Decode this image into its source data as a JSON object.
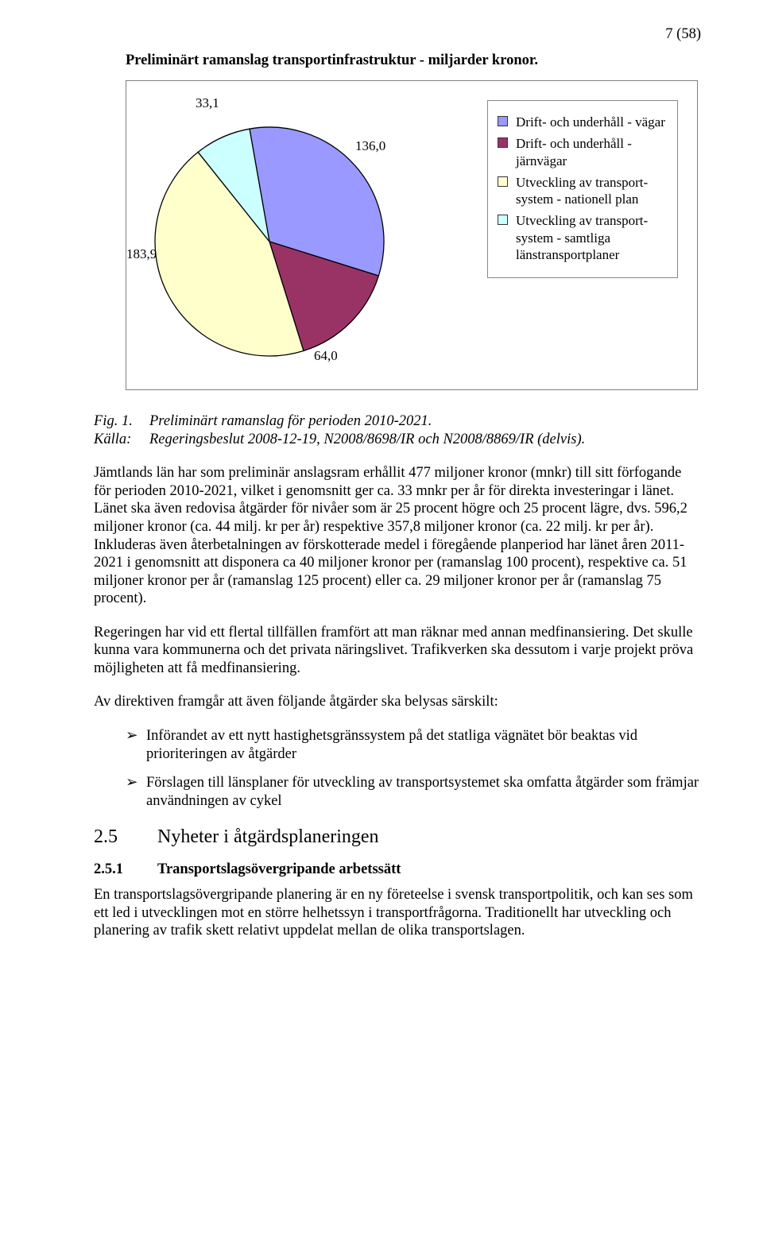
{
  "page_number": "7   (58)",
  "chart": {
    "title": "Preliminärt ramanslag transportinfrastruktur - miljarder kronor.",
    "type": "pie",
    "labels": [
      "33,1",
      "136,0",
      "183,9",
      "64,0"
    ],
    "series": [
      {
        "name": "Drift- och underhåll - vägar",
        "value": 136.0,
        "color": "#9999ff"
      },
      {
        "name": "Drift- och underhåll - järnvägar",
        "value": 64.0,
        "color": "#993366"
      },
      {
        "name": "Utveckling av transport-system - nationell plan",
        "value": 183.9,
        "color": "#ffffcc"
      },
      {
        "name": "Utveckling av transport-system - samtliga länstransportplaner",
        "value": 33.1,
        "color": "#ccffff"
      }
    ],
    "legend_colors": [
      "#9999ff",
      "#993366",
      "#ffffcc",
      "#ccffff"
    ],
    "legend_labels": [
      "Drift- och underhåll - vägar",
      "Drift- och underhåll - järnvägar",
      "Utveckling av transport-system - nationell plan",
      "Utveckling av transport-system - samtliga länstransportplaner"
    ],
    "stroke": "#000000",
    "border_color": "#808080",
    "background": "#ffffff",
    "label_fontsize": 17,
    "legend_fontsize": 17
  },
  "fig_caption": {
    "fig_label": "Fig. 1.",
    "fig_text": "Preliminärt ramanslag för perioden 2010-2021.",
    "src_label": "Källa:",
    "src_text": "Regeringsbeslut 2008-12-19, N2008/8698/IR och N2008/8869/IR (delvis)."
  },
  "paragraphs": {
    "p1": "Jämtlands län har som preliminär anslagsram erhållit 477 miljoner kronor (mnkr) till sitt förfogande för perioden 2010-2021, vilket i genomsnitt ger ca. 33 mnkr per år för direkta investeringar i länet. Länet ska även redovisa åtgärder för nivåer som är 25 procent högre och 25 procent lägre, dvs. 596,2 miljoner kronor (ca. 44 milj. kr per år) respektive 357,8 miljoner kronor (ca. 22 milj. kr per år). Inkluderas även återbetalningen av förskotterade medel i föregående planperiod har länet åren 2011-2021 i genomsnitt att disponera ca 40 miljoner kronor per (ramanslag 100 procent), respektive ca. 51 miljoner kronor per år (ramanslag 125 procent) eller ca. 29 miljoner kronor per år (ramanslag 75 procent).",
    "p2": "Regeringen har vid ett flertal tillfällen framfört att man räknar med annan medfinansiering. Det skulle kunna vara kommunerna och det privata näringslivet. Trafikverken ska dessutom i varje projekt pröva möjligheten att få medfinansiering.",
    "p3": "Av direktiven framgår att även följande åtgärder ska belysas särskilt:"
  },
  "bullets": [
    "Införandet av ett nytt hastighetsgränssystem på det statliga vägnätet bör beaktas vid prioriteringen av åtgärder",
    "Förslagen till länsplaner för utveckling av transportsystemet ska omfatta åtgärder som främjar användningen av cykel"
  ],
  "section": {
    "num": "2.5",
    "title": "Nyheter i åtgärdsplaneringen"
  },
  "subsection": {
    "num": "2.5.1",
    "title": "Transportslagsövergripande arbetssätt"
  },
  "paragraphs2": {
    "p4": "En transportslagsövergripande planering är en ny företeelse i svensk transportpolitik, och kan ses som ett led i utvecklingen mot en större helhetssyn i transportfrågorna. Traditionellt har utveckling och planering av trafik skett relativt uppdelat mellan de olika transportslagen."
  }
}
